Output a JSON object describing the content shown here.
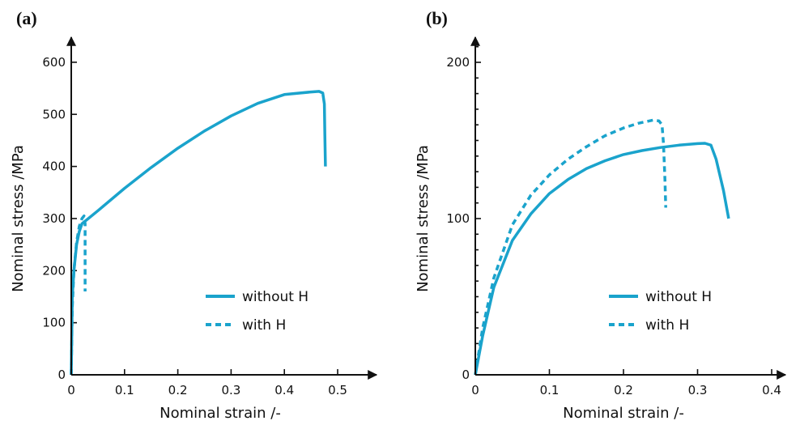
{
  "chart_data": [
    {
      "panel_label": "(a)",
      "type": "line",
      "xlabel": "Nominal strain /-",
      "ylabel": "Nominal stress /MPa",
      "xlim": [
        0,
        0.55
      ],
      "ylim": [
        0,
        650
      ],
      "xticks": [
        0,
        0.1,
        0.2,
        0.3,
        0.4,
        0.5
      ],
      "xtick_labels": [
        "0",
        "0.1",
        "0.2",
        "0.3",
        "0.4",
        "0.5"
      ],
      "yticks": [
        0,
        100,
        200,
        300,
        400,
        500,
        600
      ],
      "ytick_labels": [
        "0",
        "100",
        "200",
        "300",
        "400",
        "500",
        "600"
      ],
      "legend_position": "lower-right",
      "series": [
        {
          "name": "without H",
          "style": "solid",
          "color": "#1aa3cc",
          "x": [
            0,
            0.002,
            0.005,
            0.01,
            0.015,
            0.02,
            0.05,
            0.1,
            0.15,
            0.2,
            0.25,
            0.3,
            0.35,
            0.4,
            0.45,
            0.465,
            0.472,
            0.475,
            0.476,
            0.477
          ],
          "y": [
            0,
            150,
            200,
            250,
            275,
            290,
            315,
            358,
            398,
            435,
            468,
            497,
            521,
            538,
            543,
            544,
            541,
            520,
            460,
            400
          ]
        },
        {
          "name": "with H",
          "style": "dashed",
          "color": "#1aa3cc",
          "x": [
            0,
            0.002,
            0.005,
            0.01,
            0.015,
            0.02,
            0.024,
            0.026,
            0.026,
            0.026
          ],
          "y": [
            0,
            130,
            200,
            255,
            285,
            300,
            305,
            290,
            230,
            160
          ]
        }
      ]
    },
    {
      "panel_label": "(b)",
      "type": "line",
      "xlabel": "Nominal strain /-",
      "ylabel": "Nominal stress /MPa",
      "xlim": [
        0,
        0.44
      ],
      "ylim": [
        0,
        220
      ],
      "xticks": [
        0,
        0.1,
        0.2,
        0.3,
        0.4
      ],
      "xtick_labels": [
        "0",
        "0.1",
        "0.2",
        "0.3",
        "0.4"
      ],
      "yticks": [
        0,
        100,
        200
      ],
      "ytick_labels": [
        "0",
        "100",
        "200"
      ],
      "minor_y_step": 10,
      "legend_position": "lower-right",
      "series": [
        {
          "name": "without H",
          "style": "solid",
          "color": "#1aa3cc",
          "x": [
            0,
            0.01,
            0.025,
            0.05,
            0.075,
            0.1,
            0.125,
            0.15,
            0.175,
            0.2,
            0.225,
            0.25,
            0.275,
            0.3,
            0.31,
            0.318,
            0.325,
            0.335,
            0.342
          ],
          "y": [
            0,
            25,
            56,
            86,
            103,
            116,
            125,
            132,
            137,
            141,
            143.5,
            145.5,
            147,
            148,
            148.2,
            147,
            138,
            118,
            100
          ]
        },
        {
          "name": "with H",
          "style": "dashed",
          "color": "#1aa3cc",
          "x": [
            0,
            0.01,
            0.025,
            0.05,
            0.075,
            0.1,
            0.125,
            0.15,
            0.175,
            0.2,
            0.22,
            0.24,
            0.248,
            0.252,
            0.254,
            0.256,
            0.257
          ],
          "y": [
            0,
            30,
            62,
            96,
            115,
            128,
            138,
            146,
            153,
            158,
            161,
            163,
            162.5,
            160,
            148,
            125,
            107
          ]
        }
      ]
    }
  ]
}
